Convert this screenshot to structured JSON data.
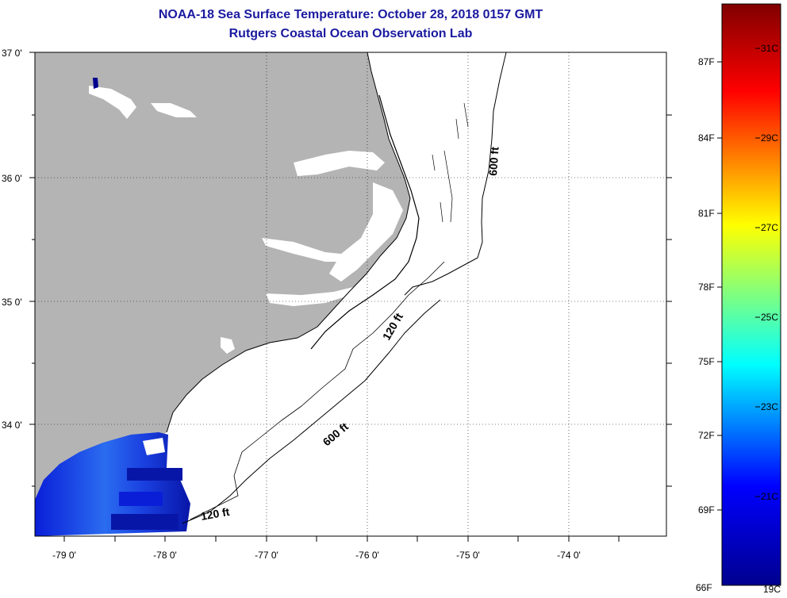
{
  "title": "NOAA-18 Sea Surface Temperature:  October 28, 2018 0157 GMT",
  "subtitle": "Rutgers Coastal Ocean Observation Lab",
  "map": {
    "lat_labels": [
      "37 0'",
      "36 0'",
      "35 0'",
      "34 0'"
    ],
    "lon_labels": [
      "-79 0'",
      "-78 0'",
      "-77 0'",
      "-76 0'",
      "-75 0'",
      "-74 0'"
    ],
    "contour_labels": [
      "600 ft",
      "120 ft",
      "600 ft",
      "120 ft"
    ],
    "land_color": "#b4b4b4",
    "ocean_color": "#ffffff"
  },
  "colorbar": {
    "fahrenheit_labels": [
      "87F",
      "84F",
      "81F",
      "78F",
      "75F",
      "72F",
      "69F",
      "66F"
    ],
    "celsius_labels": [
      "31C",
      "29C",
      "27C",
      "25C",
      "23C",
      "21C",
      "19C"
    ],
    "colors": [
      "#00008f",
      "#0000ff",
      "#00ffff",
      "#ffff00",
      "#ff0000",
      "#800000"
    ]
  }
}
